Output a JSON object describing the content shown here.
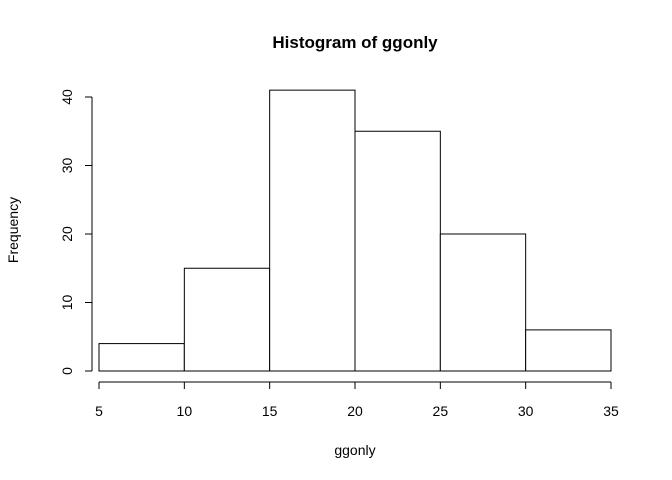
{
  "chart_data": {
    "type": "bar",
    "title": "Histogram of ggonly",
    "xlabel": "ggonly",
    "ylabel": "Frequency",
    "bins": [
      {
        "from": 5,
        "to": 10,
        "count": 4
      },
      {
        "from": 10,
        "to": 15,
        "count": 15
      },
      {
        "from": 15,
        "to": 20,
        "count": 41
      },
      {
        "from": 20,
        "to": 25,
        "count": 35
      },
      {
        "from": 25,
        "to": 30,
        "count": 20
      },
      {
        "from": 30,
        "to": 35,
        "count": 6
      }
    ],
    "xlim": [
      5,
      35
    ],
    "ylim": [
      0,
      40
    ],
    "x_ticks": [
      5,
      10,
      15,
      20,
      25,
      30,
      35
    ],
    "y_ticks": [
      0,
      10,
      20,
      30,
      40
    ],
    "grid": false
  }
}
